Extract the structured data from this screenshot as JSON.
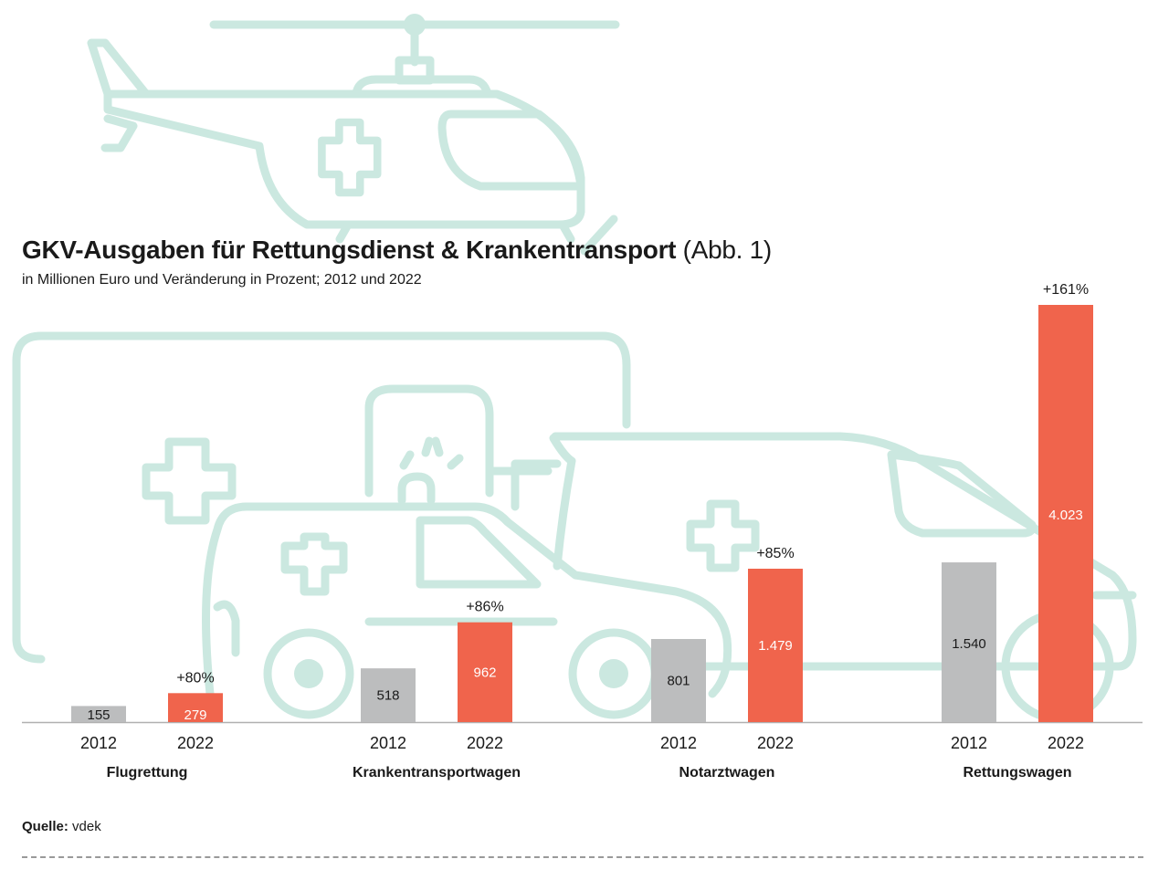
{
  "title": {
    "main": "GKV-Ausgaben für Rettungsdienst & Krankentransport",
    "suffix": "(Abb. 1)"
  },
  "subtitle": "in Millionen Euro und Veränderung in Prozent; 2012 und 2022",
  "source": {
    "label": "Quelle:",
    "value": "vdek"
  },
  "colors": {
    "y2012": "#bcbdbe",
    "y2022": "#f0644c",
    "illustration": "#cbe8e0",
    "axis": "#b0b0b0"
  },
  "chart_data": {
    "type": "bar",
    "title": "GKV-Ausgaben für Rettungsdienst & Krankentransport (Abb. 1)",
    "subtitle": "in Millionen Euro und Veränderung in Prozent; 2012 und 2022",
    "unit": "Millionen Euro",
    "categories": [
      "Flugrettung",
      "Krankentransportwagen",
      "Notarztwagen",
      "Rettungswagen"
    ],
    "years": [
      "2012",
      "2022"
    ],
    "series": [
      {
        "name": "2012",
        "values": [
          155,
          518,
          801,
          1540
        ],
        "labels": [
          "155",
          "518",
          "801",
          "1.540"
        ]
      },
      {
        "name": "2022",
        "values": [
          279,
          962,
          1479,
          4023
        ],
        "labels": [
          "279",
          "962",
          "1.479",
          "4.023"
        ]
      }
    ],
    "changes": [
      "+80%",
      "+86%",
      "+85%",
      "+161%"
    ],
    "xlabel": "",
    "ylabel": "",
    "ylim": [
      0,
      4023
    ],
    "grid": false,
    "legend": "none"
  }
}
